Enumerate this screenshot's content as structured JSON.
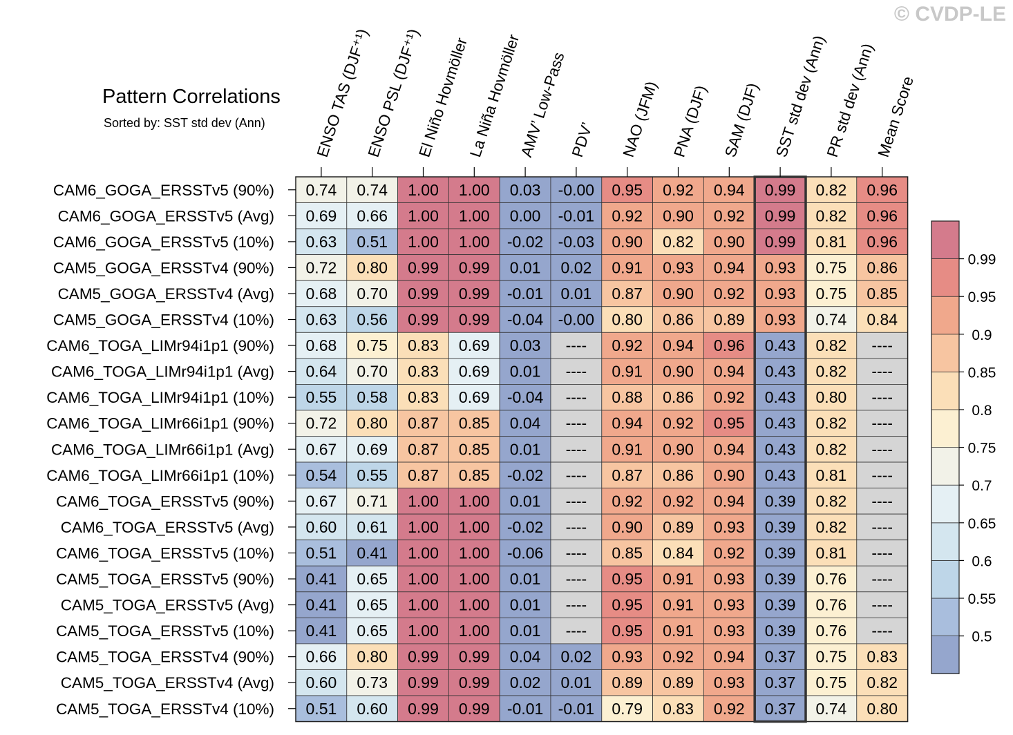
{
  "watermark": "© CVDP-LE",
  "chart_data": {
    "type": "heatmap",
    "title": "Pattern Correlations",
    "subtitle": "Sorted by: SST std dev (Ann)",
    "columns": [
      "ENSO TAS (DJF⁺¹)",
      "ENSO PSL (DJF⁺¹)",
      "El Niño Hovmöller",
      "La Niña Hovmöller",
      "AMV’ Low-Pass",
      "PDV’",
      "NAO (JFM)",
      "PNA (DJF)",
      "SAM (DJF)",
      "SST std dev (Ann)",
      "PR std dev (Ann)",
      "Mean Score"
    ],
    "highlighted_column": "SST std dev (Ann)",
    "rows": [
      "CAM6_GOGA_ERSSTv5 (90%)",
      "CAM6_GOGA_ERSSTv5 (Avg)",
      "CAM6_GOGA_ERSSTv5 (10%)",
      "CAM5_GOGA_ERSSTv4 (90%)",
      "CAM5_GOGA_ERSSTv4 (Avg)",
      "CAM5_GOGA_ERSSTv4 (10%)",
      "CAM6_TOGA_LIMr94i1p1 (90%)",
      "CAM6_TOGA_LIMr94i1p1 (Avg)",
      "CAM6_TOGA_LIMr94i1p1 (10%)",
      "CAM6_TOGA_LIMr66i1p1 (90%)",
      "CAM6_TOGA_LIMr66i1p1 (Avg)",
      "CAM6_TOGA_LIMr66i1p1 (10%)",
      "CAM6_TOGA_ERSSTv5 (90%)",
      "CAM6_TOGA_ERSSTv5 (Avg)",
      "CAM6_TOGA_ERSSTv5 (10%)",
      "CAM5_TOGA_ERSSTv5 (90%)",
      "CAM5_TOGA_ERSSTv5 (Avg)",
      "CAM5_TOGA_ERSSTv5 (10%)",
      "CAM5_TOGA_ERSSTv4 (90%)",
      "CAM5_TOGA_ERSSTv4 (Avg)",
      "CAM5_TOGA_ERSSTv4 (10%)"
    ],
    "values": [
      [
        "0.74",
        "0.74",
        "1.00",
        "1.00",
        "0.03",
        "-0.00",
        "0.95",
        "0.92",
        "0.94",
        "0.99",
        "0.82",
        "0.96"
      ],
      [
        "0.69",
        "0.66",
        "1.00",
        "1.00",
        "0.00",
        "-0.01",
        "0.92",
        "0.90",
        "0.92",
        "0.99",
        "0.82",
        "0.96"
      ],
      [
        "0.63",
        "0.51",
        "1.00",
        "1.00",
        "-0.02",
        "-0.03",
        "0.90",
        "0.82",
        "0.90",
        "0.99",
        "0.81",
        "0.96"
      ],
      [
        "0.72",
        "0.80",
        "0.99",
        "0.99",
        "0.01",
        "0.02",
        "0.91",
        "0.93",
        "0.94",
        "0.93",
        "0.75",
        "0.86"
      ],
      [
        "0.68",
        "0.70",
        "0.99",
        "0.99",
        "-0.01",
        "0.01",
        "0.87",
        "0.90",
        "0.92",
        "0.93",
        "0.75",
        "0.85"
      ],
      [
        "0.63",
        "0.56",
        "0.99",
        "0.99",
        "-0.04",
        "-0.00",
        "0.80",
        "0.86",
        "0.89",
        "0.93",
        "0.74",
        "0.84"
      ],
      [
        "0.68",
        "0.75",
        "0.83",
        "0.69",
        "0.03",
        "----",
        "0.92",
        "0.94",
        "0.96",
        "0.43",
        "0.82",
        "----"
      ],
      [
        "0.64",
        "0.70",
        "0.83",
        "0.69",
        "0.01",
        "----",
        "0.91",
        "0.90",
        "0.94",
        "0.43",
        "0.82",
        "----"
      ],
      [
        "0.55",
        "0.58",
        "0.83",
        "0.69",
        "-0.04",
        "----",
        "0.88",
        "0.86",
        "0.92",
        "0.43",
        "0.80",
        "----"
      ],
      [
        "0.72",
        "0.80",
        "0.87",
        "0.85",
        "0.04",
        "----",
        "0.94",
        "0.92",
        "0.95",
        "0.43",
        "0.82",
        "----"
      ],
      [
        "0.67",
        "0.69",
        "0.87",
        "0.85",
        "0.01",
        "----",
        "0.91",
        "0.90",
        "0.94",
        "0.43",
        "0.82",
        "----"
      ],
      [
        "0.54",
        "0.55",
        "0.87",
        "0.85",
        "-0.02",
        "----",
        "0.87",
        "0.86",
        "0.90",
        "0.43",
        "0.81",
        "----"
      ],
      [
        "0.67",
        "0.71",
        "1.00",
        "1.00",
        "0.01",
        "----",
        "0.92",
        "0.92",
        "0.94",
        "0.39",
        "0.82",
        "----"
      ],
      [
        "0.60",
        "0.61",
        "1.00",
        "1.00",
        "-0.02",
        "----",
        "0.90",
        "0.89",
        "0.93",
        "0.39",
        "0.82",
        "----"
      ],
      [
        "0.51",
        "0.41",
        "1.00",
        "1.00",
        "-0.06",
        "----",
        "0.85",
        "0.84",
        "0.92",
        "0.39",
        "0.81",
        "----"
      ],
      [
        "0.41",
        "0.65",
        "1.00",
        "1.00",
        "0.01",
        "----",
        "0.95",
        "0.91",
        "0.93",
        "0.39",
        "0.76",
        "----"
      ],
      [
        "0.41",
        "0.65",
        "1.00",
        "1.00",
        "0.01",
        "----",
        "0.95",
        "0.91",
        "0.93",
        "0.39",
        "0.76",
        "----"
      ],
      [
        "0.41",
        "0.65",
        "1.00",
        "1.00",
        "0.01",
        "----",
        "0.95",
        "0.91",
        "0.93",
        "0.39",
        "0.76",
        "----"
      ],
      [
        "0.66",
        "0.80",
        "0.99",
        "0.99",
        "0.04",
        "0.02",
        "0.93",
        "0.92",
        "0.94",
        "0.37",
        "0.75",
        "0.83"
      ],
      [
        "0.60",
        "0.73",
        "0.99",
        "0.99",
        "0.02",
        "0.01",
        "0.89",
        "0.89",
        "0.93",
        "0.37",
        "0.75",
        "0.82"
      ],
      [
        "0.51",
        "0.60",
        "0.99",
        "0.99",
        "-0.01",
        "-0.01",
        "0.79",
        "0.83",
        "0.92",
        "0.37",
        "0.74",
        "0.80"
      ]
    ],
    "colorbar": {
      "levels": [
        0.5,
        0.55,
        0.6,
        0.65,
        0.7,
        0.75,
        0.8,
        0.85,
        0.9,
        0.95,
        0.99
      ],
      "tick_labels": [
        "0.5",
        "0.55",
        "0.6",
        "0.65",
        "0.7",
        "0.75",
        "0.8",
        "0.85",
        "0.9",
        "0.95",
        "0.99"
      ],
      "colors": [
        "#95a6cd",
        "#a9bedd",
        "#bed6e8",
        "#d4e6ef",
        "#e5f0f4",
        "#f2f2e8",
        "#fcf0d2",
        "#fbdfb8",
        "#f7c5a1",
        "#f0a88c",
        "#e68c85",
        "#d47b8c"
      ],
      "missing_color": "#d5d5d5"
    }
  }
}
